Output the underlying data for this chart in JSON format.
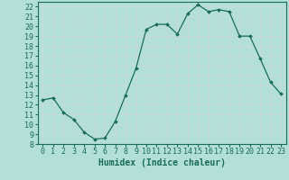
{
  "x": [
    0,
    1,
    2,
    3,
    4,
    5,
    6,
    7,
    8,
    9,
    10,
    11,
    12,
    13,
    14,
    15,
    16,
    17,
    18,
    19,
    20,
    21,
    22,
    23
  ],
  "y": [
    12.5,
    12.7,
    11.2,
    10.5,
    9.2,
    8.5,
    8.6,
    10.3,
    13.0,
    15.7,
    19.7,
    20.2,
    20.2,
    19.2,
    21.3,
    22.2,
    21.5,
    21.7,
    21.5,
    19.0,
    19.0,
    16.7,
    14.3,
    13.1
  ],
  "line_color": "#1a6b5a",
  "marker": "D",
  "markersize": 2.0,
  "linewidth": 0.9,
  "bg_color": "#b2e0d8",
  "grid_color": "#c8dbd8",
  "xlabel": "Humidex (Indice chaleur)",
  "xlabel_fontsize": 7,
  "tick_fontsize": 6,
  "ylim": [
    8,
    22.5
  ],
  "xlim": [
    -0.5,
    23.5
  ],
  "yticks": [
    8,
    9,
    10,
    11,
    12,
    13,
    14,
    15,
    16,
    17,
    18,
    19,
    20,
    21,
    22
  ],
  "xticks": [
    0,
    1,
    2,
    3,
    4,
    5,
    6,
    7,
    8,
    9,
    10,
    11,
    12,
    13,
    14,
    15,
    16,
    17,
    18,
    19,
    20,
    21,
    22,
    23
  ]
}
